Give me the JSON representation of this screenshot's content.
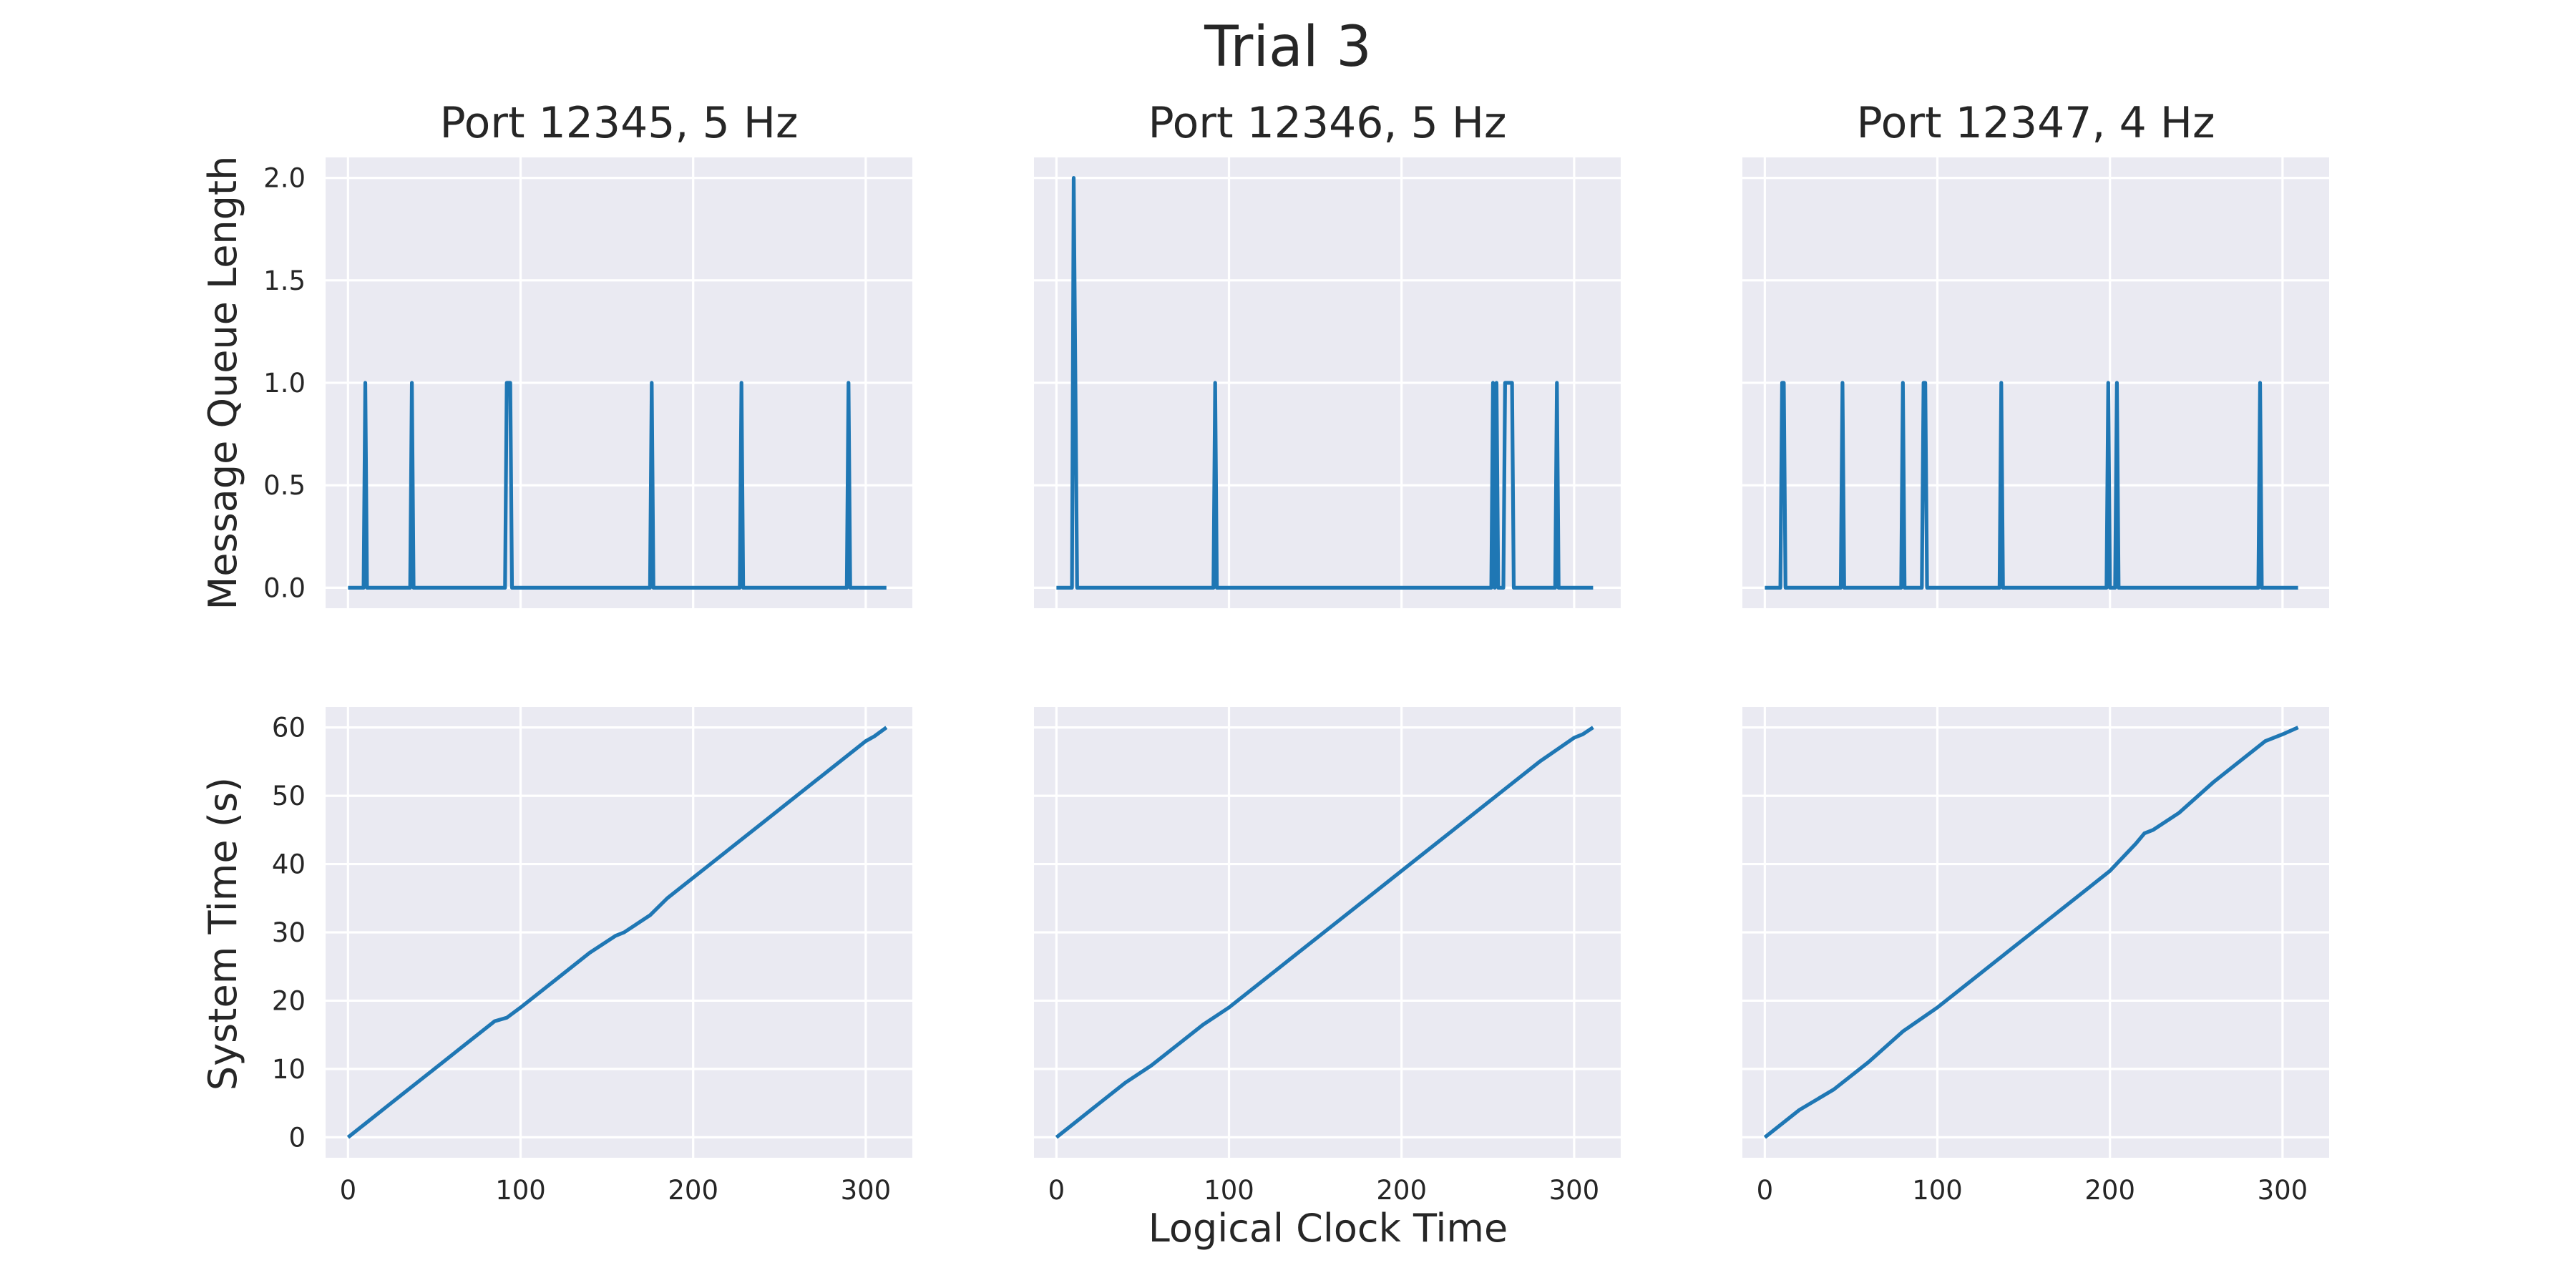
{
  "figure": {
    "title": "Trial 3",
    "xlabel": "Logical Clock Time",
    "row_ylabels": [
      "Message Queue Length",
      "System Time (s)"
    ]
  },
  "chart_data": [
    {
      "type": "line",
      "title": "Port 12345, 5 Hz",
      "xlabel": "",
      "ylabel": "Message Queue Length",
      "xlim": [
        -13,
        327
      ],
      "ylim": [
        -0.1,
        2.1
      ],
      "xticks": [
        0,
        100,
        200,
        300
      ],
      "yticks": [
        0.0,
        0.5,
        1.0,
        1.5,
        2.0
      ],
      "ytick_labels": [
        "0.0",
        "0.5",
        "1.0",
        "1.5",
        "2.0"
      ],
      "grid": true,
      "series": [
        {
          "x": [
            0,
            9,
            10,
            11,
            36,
            37,
            38,
            91,
            92,
            94,
            95,
            175,
            176,
            177,
            227,
            228,
            229,
            289,
            290,
            291,
            312
          ],
          "y": [
            0,
            0,
            1,
            0,
            0,
            1,
            0,
            0,
            1,
            1,
            0,
            0,
            1,
            0,
            0,
            1,
            0,
            0,
            1,
            0,
            0
          ]
        }
      ]
    },
    {
      "type": "line",
      "title": "Port 12346, 5 Hz",
      "xlabel": "",
      "ylabel": "",
      "xlim": [
        -13,
        327
      ],
      "ylim": [
        -0.1,
        2.1
      ],
      "xticks": [
        0,
        100,
        200,
        300
      ],
      "yticks": [
        0.0,
        0.5,
        1.0,
        1.5,
        2.0
      ],
      "grid": true,
      "series": [
        {
          "x": [
            0,
            9,
            10,
            12,
            91,
            92,
            93,
            252,
            253,
            254,
            255,
            256,
            259,
            260,
            264,
            265,
            289,
            290,
            291,
            311
          ],
          "y": [
            0,
            0,
            2,
            0,
            0,
            1,
            0,
            0,
            1,
            0,
            1,
            0,
            0,
            1,
            1,
            0,
            0,
            1,
            0,
            0
          ]
        }
      ]
    },
    {
      "type": "line",
      "title": "Port 12347, 4 Hz",
      "xlabel": "",
      "ylabel": "",
      "xlim": [
        -13,
        327
      ],
      "ylim": [
        -0.1,
        2.1
      ],
      "xticks": [
        0,
        100,
        200,
        300
      ],
      "yticks": [
        0.0,
        0.5,
        1.0,
        1.5,
        2.0
      ],
      "grid": true,
      "series": [
        {
          "x": [
            0,
            9,
            10,
            11,
            12,
            44,
            45,
            46,
            79,
            80,
            81,
            91,
            92,
            93,
            94,
            136,
            137,
            138,
            198,
            199,
            200,
            203,
            204,
            205,
            286,
            287,
            288,
            309
          ],
          "y": [
            0,
            0,
            1,
            1,
            0,
            0,
            1,
            0,
            0,
            1,
            0,
            0,
            1,
            1,
            0,
            0,
            1,
            0,
            0,
            1,
            0,
            0,
            1,
            0,
            0,
            1,
            0,
            0
          ]
        }
      ]
    },
    {
      "type": "line",
      "title": "",
      "xlabel": "",
      "ylabel": "System Time (s)",
      "xlim": [
        -13,
        327
      ],
      "ylim": [
        -3,
        63
      ],
      "xticks": [
        0,
        100,
        200,
        300
      ],
      "xtick_labels": [
        "0",
        "100",
        "200",
        "300"
      ],
      "yticks": [
        0,
        10,
        20,
        30,
        40,
        50,
        60
      ],
      "ytick_labels": [
        "0",
        "10",
        "20",
        "30",
        "40",
        "50",
        "60"
      ],
      "grid": true,
      "series": [
        {
          "x": [
            0,
            10,
            25,
            40,
            55,
            70,
            85,
            92,
            100,
            120,
            140,
            155,
            160,
            175,
            185,
            200,
            220,
            240,
            260,
            280,
            300,
            305,
            312
          ],
          "y": [
            0,
            2,
            5,
            8,
            11,
            14,
            17,
            17.5,
            19,
            23,
            27,
            29.5,
            30,
            32.5,
            35,
            38,
            42,
            46,
            50,
            54,
            58,
            58.7,
            60
          ]
        }
      ]
    },
    {
      "type": "line",
      "title": "",
      "xlabel": "Logical Clock Time",
      "ylabel": "",
      "xlim": [
        -13,
        327
      ],
      "ylim": [
        -3,
        63
      ],
      "xticks": [
        0,
        100,
        200,
        300
      ],
      "xtick_labels": [
        "0",
        "100",
        "200",
        "300"
      ],
      "yticks": [
        0,
        10,
        20,
        30,
        40,
        50,
        60
      ],
      "grid": true,
      "series": [
        {
          "x": [
            0,
            10,
            25,
            40,
            55,
            70,
            85,
            100,
            120,
            140,
            160,
            180,
            200,
            220,
            240,
            260,
            280,
            300,
            305,
            311
          ],
          "y": [
            0,
            2,
            5,
            8,
            10.5,
            13.5,
            16.5,
            19,
            23,
            27,
            31,
            35,
            39,
            43,
            47,
            51,
            55,
            58.5,
            59,
            60
          ]
        }
      ]
    },
    {
      "type": "line",
      "title": "",
      "xlabel": "",
      "ylabel": "",
      "xlim": [
        -13,
        327
      ],
      "ylim": [
        -3,
        63
      ],
      "xticks": [
        0,
        100,
        200,
        300
      ],
      "xtick_labels": [
        "0",
        "100",
        "200",
        "300"
      ],
      "yticks": [
        0,
        10,
        20,
        30,
        40,
        50,
        60
      ],
      "grid": true,
      "series": [
        {
          "x": [
            0,
            10,
            20,
            40,
            60,
            80,
            100,
            120,
            140,
            160,
            180,
            200,
            215,
            220,
            225,
            240,
            260,
            280,
            290,
            300,
            309
          ],
          "y": [
            0,
            2,
            4,
            7,
            11,
            15.5,
            19,
            23,
            27,
            31,
            35,
            39,
            43,
            44.5,
            45,
            47.5,
            52,
            56,
            58,
            59,
            60
          ]
        }
      ]
    }
  ]
}
